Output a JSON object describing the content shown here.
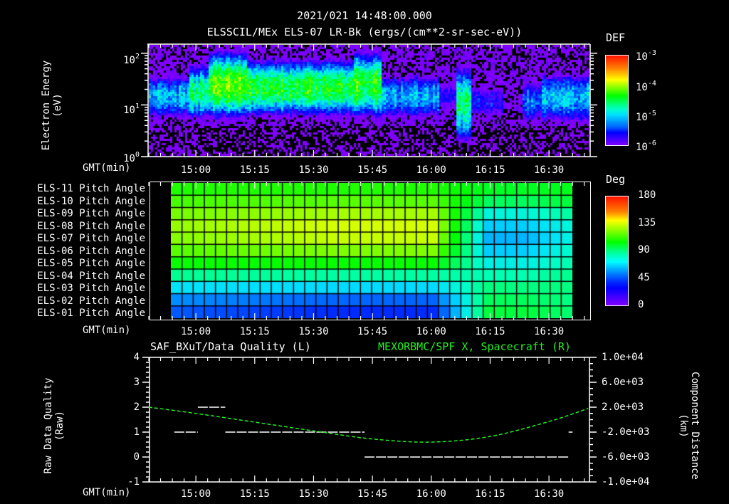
{
  "header": {
    "datetime": "2021/021 14:48:00.000",
    "title": "ELSSCIL/MEx ELS-07 LR-Bk  (ergs/(cm**2-sr-sec-eV))"
  },
  "time_axis": {
    "label": "GMT(min)",
    "ticks": [
      "15:00",
      "15:15",
      "15:30",
      "15:45",
      "16:00",
      "16:15",
      "16:30"
    ],
    "tick_minutes": [
      900,
      915,
      930,
      945,
      960,
      975,
      990
    ],
    "start_minute": 888,
    "end_minute": 1000.5
  },
  "panel1": {
    "ylabel_line1": "Electron Energy",
    "ylabel_line2": "(eV)",
    "yticks": [
      {
        "base": "10",
        "exp": "2"
      },
      {
        "base": "10",
        "exp": "1"
      },
      {
        "base": "10",
        "exp": "0"
      }
    ],
    "colorbar": {
      "label": "DEF",
      "ticks": [
        {
          "base": "10",
          "exp": "-3"
        },
        {
          "base": "10",
          "exp": "-4"
        },
        {
          "base": "10",
          "exp": "-5"
        },
        {
          "base": "10",
          "exp": "-6"
        }
      ]
    }
  },
  "panel2": {
    "rows": [
      "ELS-11 Pitch Angle",
      "ELS-10 Pitch Angle",
      "ELS-09 Pitch Angle",
      "ELS-08 Pitch Angle",
      "ELS-07 Pitch Angle",
      "ELS-06 Pitch Angle",
      "ELS-05 Pitch Angle",
      "ELS-04 Pitch Angle",
      "ELS-03 Pitch Angle",
      "ELS-02 Pitch Angle",
      "ELS-01 Pitch Angle"
    ],
    "colorbar": {
      "label": "Deg",
      "ticks": [
        "180",
        "135",
        "90",
        "45",
        "0"
      ]
    }
  },
  "panel3": {
    "title_left": "SAF_BXuT/Data Quality (L)",
    "title_right": "MEXORBMC/SPF X, Spacecraft (R)",
    "ylabel_left_line1": "Raw Data Quality",
    "ylabel_left_line2": "(Raw)",
    "ylabel_right_line1": "Component Distance",
    "ylabel_right_line2": "(km)",
    "yticks_left": [
      "4",
      "3",
      "2",
      "1",
      "0",
      "-1"
    ],
    "yticks_right": [
      "1.0e+04",
      "6.0e+03",
      "2.0e+03",
      "-2.0e+03",
      "-6.0e+03",
      "-1.0e+04"
    ]
  },
  "colors": {
    "background": "#000000",
    "foreground": "#ffffff",
    "orbit_line": "#22ee22"
  },
  "chart_data": [
    {
      "type": "heatmap",
      "title": "ELSSCIL/MEx ELS-07 LR-Bk (ergs/(cm**2-sr-sec-eV))",
      "xlabel": "GMT(min)",
      "ylabel": "Electron Energy (eV)",
      "yscale": "log",
      "ylim": [
        1,
        150
      ],
      "colorbar": {
        "label": "DEF",
        "scale": "log",
        "range": [
          1e-06,
          0.001
        ]
      },
      "x_ticks": [
        "15:00",
        "15:15",
        "15:30",
        "15:45",
        "16:00",
        "16:15",
        "16:30"
      ],
      "bands": [
        {
          "start": "14:48",
          "end": "14:58",
          "center_eV": 15,
          "peak_log_def": -5.0,
          "width_decades": 0.35
        },
        {
          "start": "14:58",
          "end": "15:03",
          "center_eV": 18,
          "peak_log_def": -4.6,
          "width_decades": 0.4
        },
        {
          "start": "15:03",
          "end": "15:13",
          "center_eV": 25,
          "peak_log_def": -4.2,
          "width_decades": 0.45
        },
        {
          "start": "15:13",
          "end": "15:40",
          "center_eV": 22,
          "peak_log_def": -4.4,
          "width_decades": 0.4
        },
        {
          "start": "15:40",
          "end": "15:47",
          "center_eV": 25,
          "peak_log_def": -4.3,
          "width_decades": 0.45
        },
        {
          "start": "15:47",
          "end": "16:02",
          "center_eV": 15,
          "peak_log_def": -5.0,
          "width_decades": 0.35
        },
        {
          "start": "16:02",
          "end": "16:06",
          "center_eV": 15,
          "peak_log_def": -5.6,
          "width_decades": 0.3
        },
        {
          "start": "16:06",
          "end": "16:10",
          "center_eV": 10,
          "peak_log_def": -4.6,
          "width_decades": 0.55
        },
        {
          "start": "16:10",
          "end": "16:18",
          "center_eV": 12,
          "peak_log_def": -5.6,
          "width_decades": 0.3
        },
        {
          "start": "16:18",
          "end": "16:23",
          "center_eV": 12,
          "peak_log_def": -6.3,
          "width_decades": 0.2
        },
        {
          "start": "16:23",
          "end": "16:28",
          "center_eV": 12,
          "peak_log_def": -5.2,
          "width_decades": 0.35
        },
        {
          "start": "16:28",
          "end": "16:40",
          "center_eV": 14,
          "peak_log_def": -5.0,
          "width_decades": 0.4
        }
      ]
    },
    {
      "type": "heatmap",
      "title": "ELS Pitch Angle",
      "xlabel": "GMT(min)",
      "colorbar": {
        "label": "Deg",
        "range": [
          0,
          180
        ]
      },
      "data_start": "14:53.5",
      "data_end": "16:35",
      "columns": 36,
      "rows": [
        "ELS-11",
        "ELS-10",
        "ELS-09",
        "ELS-08",
        "ELS-07",
        "ELS-06",
        "ELS-05",
        "ELS-04",
        "ELS-03",
        "ELS-02",
        "ELS-01"
      ],
      "row_profiles_deg": {
        "early": [
          103,
          108,
          114,
          118,
          116,
          110,
          100,
          82,
          66,
          52,
          44
        ],
        "mid": [
          103,
          110,
          120,
          126,
          124,
          115,
          100,
          80,
          64,
          46,
          36
        ],
        "late": [
          95,
          88,
          72,
          62,
          58,
          62,
          70,
          78,
          84,
          88,
          92
        ],
        "end": [
          96,
          92,
          80,
          72,
          70,
          74,
          78,
          82,
          84,
          84,
          86
        ]
      }
    },
    {
      "type": "line",
      "title_left": "SAF_BXuT/Data Quality (L)",
      "title_right": "MEXORBMC/SPF X, Spacecraft (R)",
      "xlabel": "GMT(min)",
      "ylabel_left": "Raw Data Quality (Raw)",
      "ylabel_right": "Component Distance (km)",
      "ylim_left": [
        -1,
        4
      ],
      "ylim_right": [
        -10000,
        10000
      ],
      "series": [
        {
          "name": "Data Quality",
          "axis": "left",
          "color": "#ffffff",
          "segments": [
            {
              "x_start": "14:54.5",
              "x_end": "15:00.5",
              "y": 1
            },
            {
              "x_start": "15:00.5",
              "x_end": "15:07.5",
              "y": 2
            },
            {
              "x_start": "15:07.5",
              "x_end": "15:43",
              "y": 1
            },
            {
              "x_start": "15:43",
              "x_end": "16:35",
              "y": 0
            },
            {
              "x_start": "16:35",
              "x_end": "16:36",
              "y": 1
            }
          ]
        },
        {
          "name": "SPF X (km)",
          "axis": "right",
          "color": "#22ee22",
          "x": [
            "14:48",
            "15:00",
            "15:15",
            "15:30",
            "15:45",
            "16:00",
            "16:15",
            "16:30",
            "16:40"
          ],
          "values": [
            2000,
            1000,
            -400,
            -1800,
            -3100,
            -3600,
            -2700,
            -300,
            1800
          ]
        }
      ]
    }
  ]
}
